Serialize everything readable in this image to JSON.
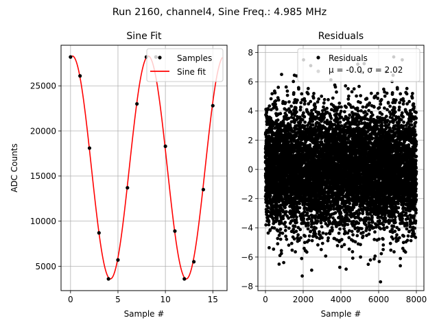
{
  "suptitle": "Run 2160, channel4, Sine Freq.: 4.985 MHz",
  "chart_data": [
    {
      "type": "line",
      "title": "Sine Fit",
      "xlabel": "Sample #",
      "ylabel": "ADC Counts",
      "xlim": [
        -1,
        16.5
      ],
      "ylim": [
        2300,
        29500
      ],
      "xticks": [
        0,
        5,
        10,
        15
      ],
      "yticks": [
        5000,
        10000,
        15000,
        20000,
        25000
      ],
      "grid": true,
      "legend": "upper right",
      "series": [
        {
          "name": "Samples",
          "style": "points",
          "color": "#000000",
          "x": [
            0,
            1,
            2,
            3,
            4,
            5,
            6,
            7,
            8,
            9,
            10,
            11,
            12,
            13,
            14,
            15
          ],
          "y": [
            28200,
            26100,
            18100,
            8700,
            3600,
            5700,
            13700,
            23000,
            28200,
            28200,
            18300,
            8900,
            3600,
            5500,
            13500,
            22800
          ]
        },
        {
          "name": "Sine fit",
          "style": "line",
          "color": "#ff0000",
          "model": {
            "offset": 15950,
            "amplitude": 12350,
            "period": 8.0,
            "peak_at": 0.2,
            "x_start": 0,
            "x_end": 16
          }
        }
      ]
    },
    {
      "type": "scatter",
      "title": "Residuals",
      "xlabel": "Sample #",
      "ylabel": "",
      "xlim": [
        -400,
        8400
      ],
      "ylim": [
        -8.3,
        8.5
      ],
      "xticks": [
        0,
        2000,
        4000,
        6000,
        8000
      ],
      "yticks": [
        -8,
        -6,
        -4,
        -2,
        0,
        2,
        4,
        6,
        8
      ],
      "grid": true,
      "legend": "upper right",
      "legend_label": "Residuals",
      "legend_stats": "μ = -0.0, σ = 2.02",
      "stats": {
        "n_points": 8000,
        "mean": -0.0,
        "std": 2.02
      },
      "outliers": [
        {
          "x": 2400,
          "y": 7.1
        },
        {
          "x": 6800,
          "y": 7.7
        },
        {
          "x": 1950,
          "y": -7.3
        },
        {
          "x": 6100,
          "y": -7.7
        },
        {
          "x": 2450,
          "y": -6.9
        },
        {
          "x": 7150,
          "y": -6.6
        },
        {
          "x": 1650,
          "y": 6.4
        },
        {
          "x": 5450,
          "y": -6.5
        }
      ],
      "series": [
        {
          "name": "Residuals",
          "color": "#000000"
        }
      ]
    }
  ]
}
